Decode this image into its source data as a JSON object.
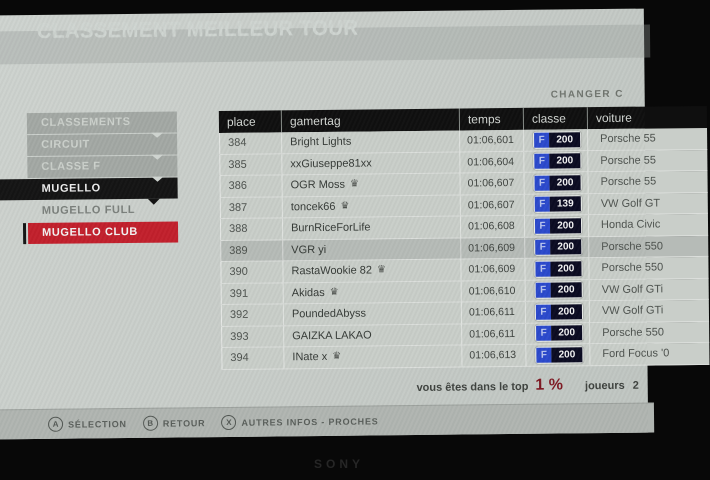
{
  "tv": {
    "brand": "SONY"
  },
  "header": {
    "title": "CLASSEMENT MEILLEUR TOUR",
    "change_link": "CHANGER C"
  },
  "sidebar": {
    "items": [
      {
        "label": "CLASSEMENTS",
        "style": "bar",
        "chevron": "light"
      },
      {
        "label": "CIRCUIT",
        "style": "bar",
        "chevron": "light"
      },
      {
        "label": "CLASSE F",
        "style": "bar",
        "chevron": "light"
      },
      {
        "label": "MUGELLO",
        "style": "active-dark",
        "chevron": "dark"
      },
      {
        "label": "MUGELLO FULL",
        "style": "plain",
        "chevron": "none"
      },
      {
        "label": "MUGELLO CLUB",
        "style": "active-red",
        "chevron": "none"
      }
    ]
  },
  "table": {
    "columns": [
      "place",
      "gamertag",
      "temps",
      "classe",
      "voiture"
    ],
    "rows": [
      {
        "place": "384",
        "gamertag": "Bright Lights",
        "crown": false,
        "temps": "01:06,601",
        "classe": {
          "letter": "F",
          "value": "200"
        },
        "voiture": "Porsche 55",
        "selected": false
      },
      {
        "place": "385",
        "gamertag": "xxGiuseppe81xx",
        "crown": false,
        "temps": "01:06,604",
        "classe": {
          "letter": "F",
          "value": "200"
        },
        "voiture": "Porsche 55",
        "selected": false
      },
      {
        "place": "386",
        "gamertag": "OGR Moss",
        "crown": true,
        "temps": "01:06,607",
        "classe": {
          "letter": "F",
          "value": "200"
        },
        "voiture": "Porsche 55",
        "selected": false
      },
      {
        "place": "387",
        "gamertag": "toncek66",
        "crown": true,
        "temps": "01:06,607",
        "classe": {
          "letter": "F",
          "value": "139"
        },
        "voiture": "VW Golf GT",
        "selected": false
      },
      {
        "place": "388",
        "gamertag": "BurnRiceForLife",
        "crown": false,
        "temps": "01:06,608",
        "classe": {
          "letter": "F",
          "value": "200"
        },
        "voiture": "Honda Civic",
        "selected": false
      },
      {
        "place": "389",
        "gamertag": "VGR yi",
        "crown": false,
        "temps": "01:06,609",
        "classe": {
          "letter": "F",
          "value": "200"
        },
        "voiture": "Porsche 550",
        "selected": true
      },
      {
        "place": "390",
        "gamertag": "RastaWookie 82",
        "crown": true,
        "temps": "01:06,609",
        "classe": {
          "letter": "F",
          "value": "200"
        },
        "voiture": "Porsche 550",
        "selected": false
      },
      {
        "place": "391",
        "gamertag": "Akidas",
        "crown": true,
        "temps": "01:06,610",
        "classe": {
          "letter": "F",
          "value": "200"
        },
        "voiture": "VW Golf GTi",
        "selected": false
      },
      {
        "place": "392",
        "gamertag": "PoundedAbyss",
        "crown": false,
        "temps": "01:06,611",
        "classe": {
          "letter": "F",
          "value": "200"
        },
        "voiture": "VW Golf GTi",
        "selected": false
      },
      {
        "place": "393",
        "gamertag": "GAIZKA LAKAO",
        "crown": false,
        "temps": "01:06,611",
        "classe": {
          "letter": "F",
          "value": "200"
        },
        "voiture": "Porsche 550",
        "selected": false
      },
      {
        "place": "394",
        "gamertag": "INate x",
        "crown": true,
        "temps": "01:06,613",
        "classe": {
          "letter": "F",
          "value": "200"
        },
        "voiture": "Ford Focus '0",
        "selected": false
      }
    ]
  },
  "footer": {
    "rank_prefix": "vous êtes dans le top",
    "rank_value": "1 %",
    "players_label": "joueurs",
    "players_partial": "2"
  },
  "legend": [
    {
      "button": "A",
      "label": "SÉLECTION"
    },
    {
      "button": "B",
      "label": "RETOUR"
    },
    {
      "button": "X",
      "label": "AUTRES INFOS - PROCHES"
    }
  ],
  "icons": {
    "crown": "♛"
  },
  "colors": {
    "accent_red": "#c2202c",
    "rank_red": "#7e1822",
    "class_blue": "#2b49cc",
    "class_dark": "#0b0b22"
  }
}
